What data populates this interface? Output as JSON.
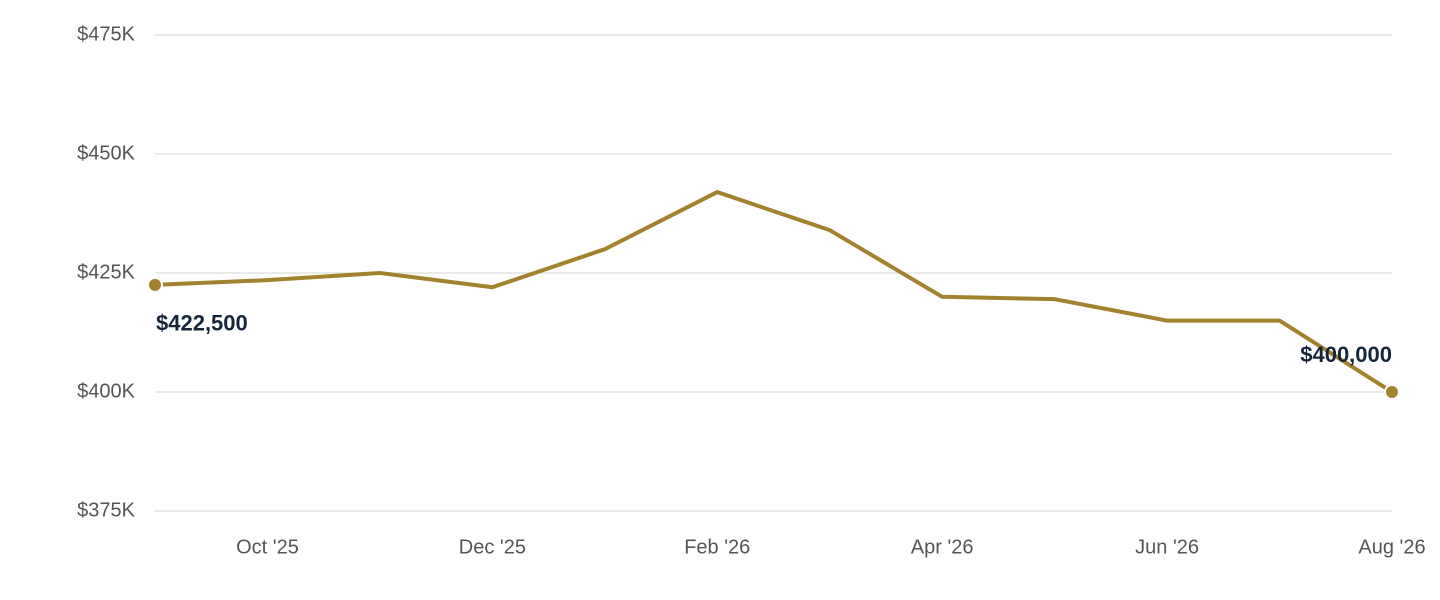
{
  "chart_data": {
    "type": "line",
    "categories": [
      null,
      "Oct '25",
      null,
      "Dec '25",
      null,
      "Feb '26",
      null,
      "Apr '26",
      null,
      "Jun '26",
      null,
      "Aug '26"
    ],
    "series": [
      {
        "color": "#a3822f",
        "values": [
          422500,
          423500,
          425000,
          422000,
          430000,
          442000,
          434000,
          420000,
          419500,
          415000,
          415000,
          400000
        ],
        "value_labels": [
          "$422,500",
          null,
          null,
          null,
          null,
          null,
          null,
          null,
          null,
          null,
          null,
          "$400,000"
        ]
      }
    ],
    "ylim": [
      375000,
      475000
    ],
    "yticks": [
      {
        "value": 375000,
        "label": "$375K"
      },
      {
        "value": 400000,
        "label": "$400K"
      },
      {
        "value": 425000,
        "label": "$425K"
      },
      {
        "value": 450000,
        "label": "$450K"
      },
      {
        "value": 475000,
        "label": "$475K"
      }
    ],
    "grid": true
  }
}
